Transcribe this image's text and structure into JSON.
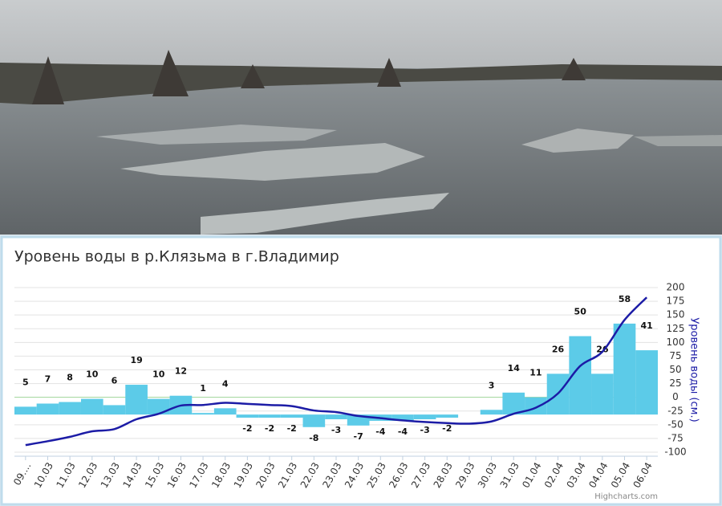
{
  "chart_data": {
    "type": "bar_line",
    "title": "Уровень воды в р.Клязьма в г.Владимир",
    "credits": "Highcharts.com",
    "categories": [
      "09....",
      "10.03",
      "11.03",
      "12.03",
      "13.03",
      "14.03",
      "15.03",
      "16.03",
      "17.03",
      "18.03",
      "19.03",
      "20.03",
      "21.03",
      "22.03",
      "23.03",
      "24.03",
      "25.03",
      "26.03",
      "27.03",
      "28.03",
      "29.03",
      "30.03",
      "31.03",
      "01.04",
      "02.04",
      "03.04",
      "04.04",
      "05.04",
      "06.04"
    ],
    "ylim": [
      -24,
      81
    ],
    "y2lim": [
      -100,
      200
    ],
    "y2ticks": [
      200,
      175,
      150,
      125,
      100,
      75,
      50,
      25,
      0,
      -25,
      -50,
      -75,
      -100
    ],
    "y2label": "Уровень воды (см.)",
    "grid": true,
    "series": [
      {
        "type": "bar",
        "color": "#5ccbe8",
        "values": [
          5,
          7,
          8,
          10,
          6,
          19,
          10,
          12,
          1,
          4,
          -2,
          -2,
          -2,
          -8,
          -3,
          -7,
          -4,
          -4,
          -3,
          -2,
          null,
          3,
          14,
          11,
          26,
          50,
          26,
          58,
          41
        ]
      },
      {
        "type": "line",
        "axis": "y2",
        "color": "#1c1ca6",
        "values": [
          -87,
          -80,
          -72,
          -62,
          -58,
          -40,
          -30,
          -15,
          -14,
          -10,
          -12,
          -14,
          -16,
          -24,
          -27,
          -34,
          -38,
          -42,
          -45,
          -47,
          -48,
          -44,
          -30,
          -19,
          7,
          57,
          83,
          141,
          182
        ]
      }
    ]
  }
}
